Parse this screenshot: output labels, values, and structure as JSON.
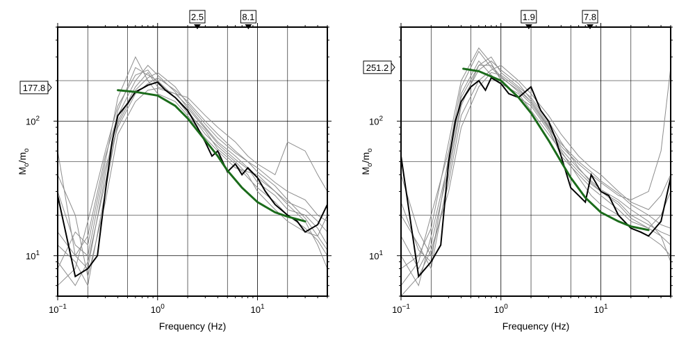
{
  "chart_data": [
    {
      "type": "line",
      "xlabel": "Frequency (Hz)",
      "ylabel": {
        "main": "M",
        "sub1": "o",
        "mid": "/m",
        "sub2": "o"
      },
      "xscale": "log",
      "yscale": "log",
      "xlim": [
        0.1,
        50
      ],
      "ylim": [
        5,
        500
      ],
      "xticks": [
        {
          "base": "10",
          "exp": "−1",
          "v": 0.1
        },
        {
          "base": "10",
          "exp": "0",
          "v": 1
        },
        {
          "base": "10",
          "exp": "1",
          "v": 10
        }
      ],
      "yticks": [
        {
          "base": "10",
          "exp": "1",
          "v": 10
        },
        {
          "base": "10",
          "exp": "2",
          "v": 100
        }
      ],
      "grid": true,
      "corner_markers": [
        {
          "label": "2.5",
          "x": 2.5
        },
        {
          "label": "8.1",
          "x": 8.1
        }
      ],
      "level_marker": {
        "label": "177.8",
        "y": 177.8
      },
      "model": {
        "color": "#1a6b1a",
        "x": [
          0.4,
          0.6,
          1,
          1.5,
          2,
          3,
          4,
          5,
          7,
          10,
          15,
          20,
          30
        ],
        "y": [
          170,
          165,
          155,
          130,
          105,
          72,
          55,
          43,
          32,
          25,
          21,
          19.5,
          18
        ]
      },
      "primary": {
        "color": "#000000",
        "x": [
          0.1,
          0.15,
          0.2,
          0.25,
          0.3,
          0.35,
          0.4,
          0.5,
          0.6,
          0.7,
          0.8,
          1,
          1.2,
          1.5,
          2,
          2.5,
          3,
          3.5,
          4,
          5,
          6,
          7,
          8,
          10,
          12,
          15,
          20,
          25,
          30,
          40,
          50
        ],
        "y": [
          28,
          7,
          8,
          10,
          30,
          70,
          110,
          135,
          165,
          175,
          185,
          195,
          170,
          150,
          120,
          90,
          70,
          55,
          60,
          42,
          48,
          40,
          45,
          38,
          30,
          24,
          20,
          18,
          15,
          17,
          24
        ]
      },
      "traces": [
        {
          "x": [
            0.1,
            0.15,
            0.2,
            0.3,
            0.4,
            0.6,
            0.8,
            1,
            1.5,
            2,
            3,
            4,
            6,
            8,
            10,
            15,
            20,
            30,
            40,
            50
          ],
          "y": [
            60,
            10,
            8,
            40,
            120,
            250,
            220,
            200,
            150,
            120,
            80,
            65,
            50,
            40,
            30,
            22,
            18,
            15,
            14,
            20
          ]
        },
        {
          "x": [
            0.1,
            0.15,
            0.2,
            0.3,
            0.4,
            0.6,
            0.8,
            1,
            1.5,
            2,
            3,
            4,
            6,
            8,
            10,
            15,
            20,
            30,
            40,
            50
          ],
          "y": [
            12,
            9,
            6,
            30,
            100,
            180,
            230,
            180,
            160,
            130,
            90,
            70,
            55,
            45,
            35,
            28,
            22,
            20,
            16,
            12
          ]
        },
        {
          "x": [
            0.1,
            0.15,
            0.2,
            0.3,
            0.4,
            0.6,
            0.8,
            1,
            1.5,
            2,
            3,
            4,
            6,
            8,
            10,
            15,
            20,
            30,
            40,
            50
          ],
          "y": [
            8,
            15,
            12,
            50,
            150,
            300,
            200,
            160,
            140,
            110,
            75,
            60,
            45,
            42,
            40,
            30,
            24,
            18,
            12,
            8
          ]
        },
        {
          "x": [
            0.1,
            0.15,
            0.2,
            0.3,
            0.4,
            0.6,
            0.8,
            1,
            1.5,
            2,
            3,
            4,
            6,
            8,
            10,
            15,
            20,
            30,
            40,
            50
          ],
          "y": [
            30,
            12,
            10,
            45,
            90,
            160,
            190,
            210,
            170,
            140,
            100,
            80,
            60,
            50,
            45,
            35,
            30,
            26,
            20,
            18
          ]
        },
        {
          "x": [
            0.1,
            0.15,
            0.2,
            0.3,
            0.4,
            0.6,
            0.8,
            1,
            1.5,
            2,
            3,
            4,
            6,
            8,
            10,
            15,
            20,
            30,
            40,
            50
          ],
          "y": [
            6,
            8,
            18,
            60,
            130,
            220,
            240,
            190,
            150,
            115,
            85,
            62,
            48,
            38,
            32,
            25,
            20,
            16,
            13,
            10
          ]
        },
        {
          "x": [
            0.1,
            0.15,
            0.2,
            0.3,
            0.4,
            0.6,
            0.8,
            1,
            1.5,
            2,
            3,
            4,
            6,
            8,
            10,
            15,
            20,
            30,
            40,
            50
          ],
          "y": [
            40,
            20,
            7,
            25,
            80,
            140,
            170,
            175,
            160,
            150,
            110,
            90,
            70,
            55,
            48,
            40,
            70,
            60,
            40,
            30
          ]
        },
        {
          "x": [
            0.1,
            0.15,
            0.2,
            0.3,
            0.4,
            0.6,
            0.8,
            1,
            1.5,
            2,
            3,
            4,
            6,
            8,
            10,
            15,
            20,
            30,
            40,
            50
          ],
          "y": [
            15,
            10,
            14,
            55,
            110,
            200,
            260,
            220,
            165,
            125,
            88,
            68,
            52,
            44,
            38,
            30,
            25,
            22,
            18,
            15
          ]
        },
        {
          "x": [
            0.1,
            0.15,
            0.2,
            0.3,
            0.4,
            0.6,
            0.8,
            1,
            1.5,
            2,
            3,
            4,
            6,
            8,
            10,
            15,
            20,
            30,
            40,
            50
          ],
          "y": [
            9,
            6,
            9,
            35,
            95,
            170,
            210,
            230,
            180,
            135,
            95,
            75,
            58,
            50,
            42,
            33,
            26,
            19,
            14,
            11
          ]
        }
      ]
    },
    {
      "type": "line",
      "xlabel": "Frequency (Hz)",
      "ylabel": {
        "main": "M",
        "sub1": "o",
        "mid": "/m",
        "sub2": "o"
      },
      "xscale": "log",
      "yscale": "log",
      "xlim": [
        0.1,
        50
      ],
      "ylim": [
        5,
        500
      ],
      "xticks": [
        {
          "base": "10",
          "exp": "−1",
          "v": 0.1
        },
        {
          "base": "10",
          "exp": "0",
          "v": 1
        },
        {
          "base": "10",
          "exp": "1",
          "v": 10
        }
      ],
      "yticks": [
        {
          "base": "10",
          "exp": "1",
          "v": 10
        },
        {
          "base": "10",
          "exp": "2",
          "v": 100
        }
      ],
      "grid": true,
      "corner_markers": [
        {
          "label": "1.9",
          "x": 1.9
        },
        {
          "label": "7.8",
          "x": 7.8
        }
      ],
      "level_marker": {
        "label": "251.2",
        "y": 251.2
      },
      "model": {
        "color": "#1a6b1a",
        "x": [
          0.42,
          0.6,
          1,
          1.5,
          2,
          3,
          4,
          5,
          7,
          10,
          15,
          20,
          30
        ],
        "y": [
          245,
          235,
          200,
          150,
          115,
          72,
          50,
          38,
          27,
          21,
          18,
          16.5,
          15.5
        ]
      },
      "primary": {
        "color": "#000000",
        "x": [
          0.1,
          0.15,
          0.2,
          0.25,
          0.3,
          0.35,
          0.4,
          0.5,
          0.6,
          0.7,
          0.8,
          1,
          1.2,
          1.5,
          2,
          2.5,
          3,
          3.5,
          4,
          5,
          6,
          7,
          8,
          10,
          12,
          15,
          20,
          25,
          30,
          40,
          50
        ],
        "y": [
          55,
          7,
          9,
          12,
          50,
          100,
          140,
          180,
          200,
          170,
          210,
          190,
          160,
          150,
          180,
          120,
          100,
          75,
          55,
          32,
          28,
          25,
          40,
          30,
          28,
          20,
          16,
          15,
          14,
          18,
          38
        ]
      },
      "traces": [
        {
          "x": [
            0.1,
            0.15,
            0.2,
            0.3,
            0.4,
            0.6,
            0.8,
            1,
            1.5,
            2,
            3,
            4,
            6,
            8,
            10,
            15,
            20,
            30,
            40,
            50
          ],
          "y": [
            6,
            9,
            20,
            60,
            180,
            330,
            250,
            210,
            170,
            140,
            90,
            55,
            40,
            32,
            28,
            22,
            18,
            16,
            20,
            30
          ]
        },
        {
          "x": [
            0.1,
            0.15,
            0.2,
            0.3,
            0.4,
            0.6,
            0.8,
            1,
            1.5,
            2,
            3,
            4,
            6,
            8,
            10,
            15,
            20,
            30,
            40,
            50
          ],
          "y": [
            20,
            12,
            8,
            40,
            130,
            260,
            300,
            230,
            180,
            150,
            100,
            70,
            45,
            35,
            30,
            25,
            20,
            17,
            15,
            14
          ]
        },
        {
          "x": [
            0.1,
            0.15,
            0.2,
            0.3,
            0.4,
            0.6,
            0.8,
            1,
            1.5,
            2,
            3,
            4,
            6,
            8,
            10,
            15,
            20,
            30,
            40,
            50
          ],
          "y": [
            10,
            6,
            14,
            50,
            160,
            280,
            220,
            190,
            160,
            120,
            80,
            60,
            38,
            28,
            24,
            20,
            16,
            14,
            12,
            10
          ]
        },
        {
          "x": [
            0.1,
            0.15,
            0.2,
            0.3,
            0.4,
            0.6,
            0.8,
            1,
            1.5,
            2,
            3,
            4,
            6,
            8,
            10,
            15,
            20,
            30,
            40,
            50
          ],
          "y": [
            40,
            15,
            10,
            35,
            110,
            200,
            240,
            260,
            200,
            160,
            110,
            80,
            55,
            45,
            40,
            30,
            25,
            22,
            28,
            40
          ]
        },
        {
          "x": [
            0.1,
            0.15,
            0.2,
            0.3,
            0.4,
            0.6,
            0.8,
            1,
            1.5,
            2,
            3,
            4,
            6,
            8,
            10,
            15,
            20,
            30,
            40,
            50
          ],
          "y": [
            8,
            10,
            16,
            70,
            200,
            350,
            270,
            200,
            150,
            130,
            85,
            58,
            42,
            34,
            30,
            24,
            19,
            16,
            14,
            12
          ]
        },
        {
          "x": [
            0.1,
            0.15,
            0.2,
            0.3,
            0.4,
            0.6,
            0.8,
            1,
            1.5,
            2,
            3,
            4,
            6,
            8,
            10,
            15,
            20,
            30,
            40,
            50
          ],
          "y": [
            14,
            8,
            12,
            45,
            140,
            240,
            280,
            240,
            190,
            145,
            95,
            65,
            48,
            40,
            35,
            28,
            26,
            30,
            60,
            250
          ]
        },
        {
          "x": [
            0.1,
            0.15,
            0.2,
            0.3,
            0.4,
            0.6,
            0.8,
            1,
            1.5,
            2,
            3,
            4,
            6,
            8,
            10,
            15,
            20,
            30,
            40,
            50
          ],
          "y": [
            5,
            7,
            11,
            30,
            90,
            180,
            230,
            220,
            175,
            140,
            92,
            62,
            44,
            36,
            31,
            26,
            22,
            18,
            14,
            9
          ]
        },
        {
          "x": [
            0.1,
            0.15,
            0.2,
            0.3,
            0.4,
            0.6,
            0.8,
            1,
            1.5,
            2,
            3,
            4,
            6,
            8,
            10,
            15,
            20,
            30,
            40,
            50
          ],
          "y": [
            25,
            11,
            9,
            55,
            150,
            260,
            260,
            215,
            165,
            135,
            88,
            68,
            50,
            42,
            36,
            29,
            24,
            20,
            17,
            16
          ]
        }
      ]
    }
  ]
}
